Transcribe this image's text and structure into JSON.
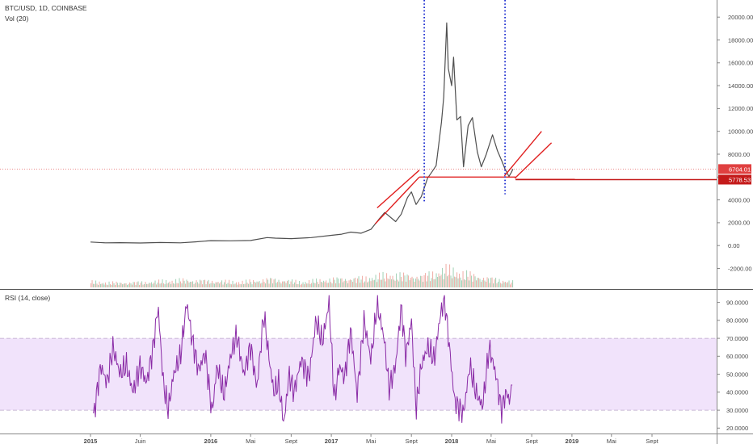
{
  "header": {
    "symbol": "BTC/USD, 1D, COINBASE",
    "volume_indicator": "Vol (20)",
    "rsi_indicator": "RSI (14, close)"
  },
  "colors": {
    "price": "#4f4f4f",
    "trendline": "#e01f1f",
    "vertical_marker": "#1f2fd0",
    "rsi_line": "#8a2ba6",
    "rsi_band": "#f1e3fb",
    "volume_up": "#a8d4bb",
    "volume_down": "#f0b3ac",
    "price_tag_current": "#e04040",
    "price_tag_support": "#c41a1a"
  },
  "chart_data": [
    {
      "type": "line",
      "pane": "price",
      "y_ticks": [
        "20000.00",
        "18000.00",
        "16000.00",
        "14000.00",
        "12000.00",
        "10000.00",
        "8000.00",
        "6000.00",
        "4000.00",
        "2000.00",
        "0.00",
        "-2000.00"
      ],
      "ylim": [
        -3800,
        21500
      ],
      "x_ticks": [
        "2015",
        "Juin",
        "2016",
        "Mai",
        "Sept",
        "2017",
        "Mai",
        "Sept",
        "2018",
        "Mai",
        "Sept",
        "2019",
        "Mai",
        "Sept"
      ],
      "x_tick_dates": [
        "2015-01-01",
        "2015-06-01",
        "2016-01-01",
        "2016-05-01",
        "2016-09-01",
        "2017-01-01",
        "2017-05-01",
        "2017-09-01",
        "2018-01-01",
        "2018-05-01",
        "2018-09-01",
        "2019-01-01",
        "2019-05-01",
        "2019-09-01"
      ],
      "price_labels": [
        {
          "text": "6704.01",
          "value": 6704.01,
          "role": "current"
        },
        {
          "text": "5778.53",
          "value": 5778.53,
          "role": "support"
        }
      ],
      "series": [
        {
          "x": [
            "2015-01-01",
            "2015-02-15",
            "2015-04-01",
            "2015-06-01",
            "2015-08-01",
            "2015-10-01",
            "2015-11-15",
            "2016-01-01",
            "2016-03-01",
            "2016-05-01",
            "2016-06-20",
            "2016-07-15",
            "2016-09-01",
            "2016-11-01",
            "2017-01-01",
            "2017-02-01",
            "2017-03-01",
            "2017-04-01",
            "2017-05-01",
            "2017-05-25",
            "2017-06-12",
            "2017-07-15",
            "2017-08-01",
            "2017-08-20",
            "2017-09-01",
            "2017-09-15",
            "2017-10-01",
            "2017-10-20",
            "2017-11-01",
            "2017-11-15",
            "2017-12-01",
            "2017-12-08",
            "2017-12-17",
            "2017-12-22",
            "2018-01-01",
            "2018-01-07",
            "2018-01-17",
            "2018-01-28",
            "2018-02-06",
            "2018-02-20",
            "2018-03-05",
            "2018-03-20",
            "2018-04-01",
            "2018-04-15",
            "2018-05-05",
            "2018-05-20",
            "2018-06-01",
            "2018-06-12",
            "2018-06-24",
            "2018-07-01",
            "2018-07-06"
          ],
          "values": [
            315,
            240,
            255,
            225,
            270,
            240,
            330,
            430,
            420,
            450,
            700,
            655,
            610,
            700,
            900,
            1000,
            1180,
            1080,
            1420,
            2300,
            2900,
            2100,
            2750,
            4200,
            4700,
            3600,
            4300,
            5900,
            6400,
            7000,
            10800,
            13000,
            19500,
            15500,
            14000,
            16500,
            11000,
            11300,
            6900,
            10500,
            11200,
            8200,
            6900,
            7900,
            9700,
            8300,
            7500,
            6700,
            6050,
            6400,
            6704
          ]
        }
      ],
      "trendlines": [
        {
          "x": [
            "2017-05-14",
            "2017-09-25"
          ],
          "y": [
            1900,
            6000
          ]
        },
        {
          "x": [
            "2017-05-20",
            "2017-09-25"
          ],
          "y": [
            3300,
            6600
          ]
        },
        {
          "x": [
            "2017-09-25",
            "2018-07-14"
          ],
          "y": [
            6000,
            6000
          ]
        },
        {
          "x": [
            "2018-07-14",
            "2019-01-10"
          ],
          "y": [
            5800,
            5800
          ]
        },
        {
          "x": [
            "2018-06-10",
            "2018-10-01"
          ],
          "y": [
            6100,
            10000
          ]
        },
        {
          "x": [
            "2018-07-12",
            "2018-10-31"
          ],
          "y": [
            5900,
            9000
          ]
        }
      ],
      "vertical_markers": [
        {
          "x": "2017-10-10",
          "y_range": [
            3800,
            21500
          ]
        },
        {
          "x": "2018-06-12",
          "y_range": [
            4500,
            21500
          ]
        }
      ]
    },
    {
      "type": "bar",
      "pane": "volume",
      "x": [
        "2015-01-01",
        "2015-04-01",
        "2015-07-01",
        "2015-10-01",
        "2016-01-01",
        "2016-04-01",
        "2016-07-01",
        "2016-10-01",
        "2017-01-01",
        "2017-04-01",
        "2017-07-01",
        "2017-10-01",
        "2017-12-15",
        "2018-02-01",
        "2018-04-01",
        "2018-06-01",
        "2018-07-06"
      ],
      "values": [
        0.3,
        0.25,
        0.3,
        0.4,
        0.35,
        0.3,
        0.45,
        0.3,
        0.45,
        0.5,
        0.7,
        0.6,
        1.0,
        0.8,
        0.55,
        0.4,
        0.3
      ]
    },
    {
      "type": "line",
      "pane": "rsi",
      "y_ticks": [
        "90.0000",
        "80.0000",
        "70.0000",
        "60.0000",
        "50.0000",
        "40.0000",
        "30.0000",
        "20.0000"
      ],
      "ylim": [
        17,
        97
      ],
      "band": [
        30,
        70
      ],
      "series": [
        {
          "x": [
            "2015-01-10",
            "2015-02-01",
            "2015-02-20",
            "2015-03-10",
            "2015-04-01",
            "2015-04-20",
            "2015-05-10",
            "2015-06-01",
            "2015-06-20",
            "2015-07-10",
            "2015-07-25",
            "2015-08-10",
            "2015-08-25",
            "2015-09-10",
            "2015-10-01",
            "2015-10-20",
            "2015-11-05",
            "2015-11-25",
            "2015-12-15",
            "2016-01-05",
            "2016-01-20",
            "2016-02-10",
            "2016-03-01",
            "2016-03-20",
            "2016-04-10",
            "2016-05-01",
            "2016-05-20",
            "2016-06-10",
            "2016-06-25",
            "2016-07-10",
            "2016-07-25",
            "2016-08-10",
            "2016-08-25",
            "2016-09-10",
            "2016-10-01",
            "2016-10-25",
            "2016-11-15",
            "2016-12-05",
            "2016-12-25",
            "2017-01-10",
            "2017-01-25",
            "2017-02-10",
            "2017-03-01",
            "2017-03-20",
            "2017-04-10",
            "2017-05-01",
            "2017-05-20",
            "2017-06-10",
            "2017-06-25",
            "2017-07-15",
            "2017-08-01",
            "2017-08-15",
            "2017-09-01",
            "2017-09-15",
            "2017-10-01",
            "2017-10-20",
            "2017-11-10",
            "2017-11-25",
            "2017-12-10",
            "2017-12-20",
            "2018-01-10",
            "2018-02-06",
            "2018-02-25",
            "2018-03-15",
            "2018-04-05",
            "2018-04-25",
            "2018-05-15",
            "2018-06-01",
            "2018-06-15",
            "2018-06-28",
            "2018-07-06"
          ],
          "values": [
            26,
            55,
            45,
            65,
            50,
            55,
            40,
            55,
            45,
            65,
            88,
            45,
            30,
            50,
            60,
            90,
            70,
            52,
            62,
            28,
            55,
            38,
            60,
            72,
            50,
            66,
            42,
            84,
            60,
            40,
            45,
            22,
            50,
            40,
            58,
            48,
            80,
            68,
            90,
            35,
            55,
            48,
            75,
            38,
            80,
            58,
            89,
            70,
            42,
            55,
            88,
            60,
            80,
            30,
            55,
            65,
            58,
            80,
            93,
            75,
            35,
            28,
            55,
            40,
            32,
            65,
            50,
            30,
            40,
            35,
            55
          ]
        }
      ]
    }
  ]
}
